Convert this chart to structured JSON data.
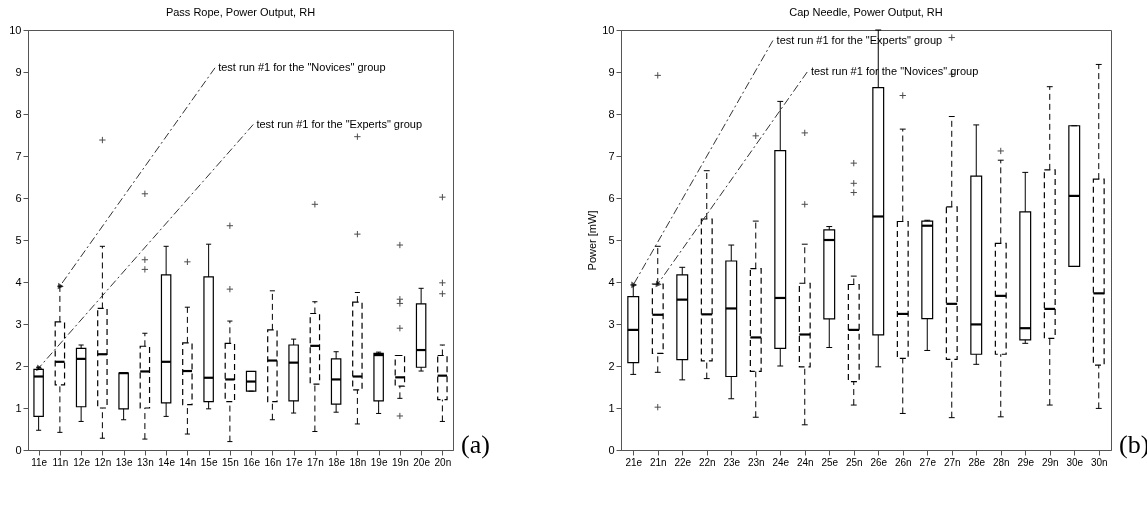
{
  "chart_data": [
    {
      "type": "box",
      "title": "Pass Rope, Power Output, RH",
      "categories": [
        "11e",
        "11n",
        "12e",
        "12n",
        "13e",
        "13n",
        "14e",
        "14n",
        "15e",
        "15n",
        "16e",
        "16n",
        "17e",
        "17n",
        "18e",
        "18n",
        "19e",
        "19n",
        "20e",
        "20n"
      ],
      "ylim": [
        0,
        10
      ],
      "yticks": [
        0,
        1,
        2,
        3,
        4,
        5,
        6,
        7,
        8,
        9,
        10
      ],
      "series": [
        {
          "color": "#000000",
          "line_style": "solid",
          "boxes": [
            {
              "low": 0.47,
              "q1": 0.8,
              "median": 1.75,
              "q3": 1.92,
              "high": 1.97
            },
            null,
            {
              "low": 0.68,
              "q1": 1.03,
              "median": 2.17,
              "q3": 2.42,
              "high": 2.5
            },
            null,
            {
              "low": 0.72,
              "q1": 0.98,
              "median": 1.83,
              "q3": 1.83,
              "high": 1.83
            },
            null,
            {
              "low": 0.8,
              "q1": 1.12,
              "median": 2.1,
              "q3": 4.17,
              "high": 4.85
            },
            null,
            {
              "low": 0.98,
              "q1": 1.15,
              "median": 1.72,
              "q3": 4.12,
              "high": 4.9
            },
            null,
            {
              "low": 1.4,
              "q1": 1.4,
              "median": 1.63,
              "q3": 1.87,
              "high": 1.87
            },
            null,
            {
              "low": 0.88,
              "q1": 1.17,
              "median": 2.08,
              "q3": 2.5,
              "high": 2.64
            },
            null,
            {
              "low": 0.9,
              "q1": 1.09,
              "median": 1.68,
              "q3": 2.17,
              "high": 2.34
            },
            null,
            {
              "low": 0.87,
              "q1": 1.17,
              "median": 2.26,
              "q3": 2.3,
              "high": 2.33
            },
            null,
            {
              "low": 1.88,
              "q1": 1.97,
              "median": 2.38,
              "q3": 3.48,
              "high": 3.85
            },
            null
          ]
        },
        {
          "color": "#000000",
          "line_style": "dashed",
          "boxes": [
            null,
            {
              "low": 0.42,
              "q1": 1.55,
              "median": 2.1,
              "q3": 3.05,
              "high": 3.9
            },
            null,
            {
              "low": 0.28,
              "q1": 1.0,
              "median": 2.28,
              "q3": 3.37,
              "high": 4.85,
              "outliers": [
                7.38
              ]
            },
            null,
            {
              "low": 0.26,
              "q1": 1.0,
              "median": 1.87,
              "q3": 2.47,
              "high": 2.78,
              "outliers": [
                6.1,
                4.53,
                4.3
              ]
            },
            null,
            {
              "low": 0.38,
              "q1": 1.08,
              "median": 1.88,
              "q3": 2.55,
              "high": 3.4,
              "outliers": [
                4.48
              ]
            },
            null,
            {
              "low": 0.2,
              "q1": 1.15,
              "median": 1.68,
              "q3": 2.54,
              "high": 3.07,
              "outliers": [
                5.34,
                3.83
              ]
            },
            null,
            {
              "low": 0.72,
              "q1": 1.15,
              "median": 2.13,
              "q3": 2.86,
              "high": 3.79
            },
            null,
            {
              "low": 0.44,
              "q1": 1.57,
              "median": 2.48,
              "q3": 3.25,
              "high": 3.53,
              "outliers": [
                5.85
              ]
            },
            null,
            {
              "low": 0.62,
              "q1": 1.43,
              "median": 1.75,
              "q3": 3.52,
              "high": 3.75,
              "outliers": [
                7.46,
                5.14
              ]
            },
            null,
            {
              "low": 1.23,
              "q1": 1.52,
              "median": 1.73,
              "q3": 2.25,
              "high": 2.25,
              "outliers": [
                4.88,
                3.59,
                3.49,
                2.9,
                0.81
              ]
            },
            null,
            {
              "low": 0.68,
              "q1": 1.2,
              "median": 1.77,
              "q3": 2.25,
              "high": 2.5,
              "outliers": [
                6.02,
                3.98,
                3.72
              ]
            }
          ]
        }
      ],
      "annotations": [
        {
          "text": "test run #1 for the \"Novices\" group",
          "x": "11n",
          "y": 3.9
        },
        {
          "text": "test run #1 for the \"Experts\" group",
          "x": "11e",
          "y": 1.95
        },
        "(a)"
      ]
    },
    {
      "type": "box",
      "title": "Cap Needle, Power Output, RH",
      "ylabel": "Power [mW]",
      "categories": [
        "21e",
        "21n",
        "22e",
        "22n",
        "23e",
        "23n",
        "24e",
        "24n",
        "25e",
        "25n",
        "26e",
        "26n",
        "27e",
        "27n",
        "28e",
        "28n",
        "29e",
        "29n",
        "30e",
        "30n"
      ],
      "ylim": [
        0,
        10
      ],
      "yticks": [
        0,
        1,
        2,
        3,
        4,
        5,
        6,
        7,
        8,
        9,
        10
      ],
      "series": [
        {
          "color": "#000000",
          "line_style": "solid",
          "boxes": [
            {
              "low": 1.8,
              "q1": 2.08,
              "median": 2.86,
              "q3": 3.65,
              "high": 3.93
            },
            null,
            {
              "low": 1.67,
              "q1": 2.15,
              "median": 3.58,
              "q3": 4.17,
              "high": 4.35
            },
            null,
            {
              "low": 1.22,
              "q1": 1.75,
              "median": 3.37,
              "q3": 4.5,
              "high": 4.88
            },
            null,
            {
              "low": 2.0,
              "q1": 2.42,
              "median": 3.62,
              "q3": 7.13,
              "high": 8.3
            },
            null,
            {
              "low": 2.44,
              "q1": 3.12,
              "median": 5.0,
              "q3": 5.24,
              "high": 5.32
            },
            null,
            {
              "low": 1.98,
              "q1": 2.74,
              "median": 5.56,
              "q3": 8.63,
              "high": 10
            },
            null,
            {
              "low": 2.37,
              "q1": 3.13,
              "median": 5.34,
              "q3": 5.45,
              "high": 5.47
            },
            null,
            {
              "low": 2.04,
              "q1": 2.28,
              "median": 2.99,
              "q3": 6.52,
              "high": 7.74
            },
            null,
            {
              "low": 2.54,
              "q1": 2.62,
              "median": 2.9,
              "q3": 5.67,
              "high": 6.61
            },
            null,
            {
              "low": 4.37,
              "q1": 4.37,
              "median": 6.05,
              "q3": 7.72,
              "high": 7.72
            },
            null
          ]
        },
        {
          "color": "#000000",
          "line_style": "dashed",
          "boxes": [
            null,
            {
              "low": 1.85,
              "q1": 2.3,
              "median": 3.22,
              "q3": 3.95,
              "high": 4.85,
              "outliers": [
                8.92,
                1.02
              ]
            },
            null,
            {
              "low": 1.7,
              "q1": 2.12,
              "median": 3.23,
              "q3": 5.5,
              "high": 6.65
            },
            null,
            {
              "low": 0.78,
              "q1": 1.87,
              "median": 2.68,
              "q3": 4.32,
              "high": 5.45,
              "outliers": [
                7.48
              ]
            },
            null,
            {
              "low": 0.6,
              "q1": 1.98,
              "median": 2.75,
              "q3": 3.97,
              "high": 4.9,
              "outliers": [
                7.55,
                5.85
              ]
            },
            null,
            {
              "low": 1.07,
              "q1": 1.63,
              "median": 2.86,
              "q3": 3.94,
              "high": 4.14,
              "outliers": [
                6.83,
                6.35,
                6.13
              ]
            },
            null,
            {
              "low": 0.87,
              "q1": 2.18,
              "median": 3.24,
              "q3": 5.44,
              "high": 7.64,
              "outliers": [
                8.44
              ]
            },
            null,
            {
              "low": 0.77,
              "q1": 2.16,
              "median": 3.48,
              "q3": 5.79,
              "high": 7.94,
              "outliers": [
                9.82,
                8.95
              ]
            },
            null,
            {
              "low": 0.79,
              "q1": 2.28,
              "median": 3.67,
              "q3": 4.92,
              "high": 6.9,
              "outliers": [
                7.12
              ]
            },
            null,
            {
              "low": 1.07,
              "q1": 2.66,
              "median": 3.36,
              "q3": 6.67,
              "high": 8.65
            },
            null,
            {
              "low": 0.99,
              "q1": 2.02,
              "median": 3.73,
              "q3": 6.45,
              "high": 9.18
            }
          ]
        }
      ],
      "annotations": [
        {
          "text": "test run #1 for the \"Experts\" group",
          "x": "21e",
          "y": 3.93
        },
        {
          "text": "test run #1 for the \"Novices\" group",
          "x": "21n",
          "y": 3.95
        },
        "(b)"
      ]
    }
  ]
}
